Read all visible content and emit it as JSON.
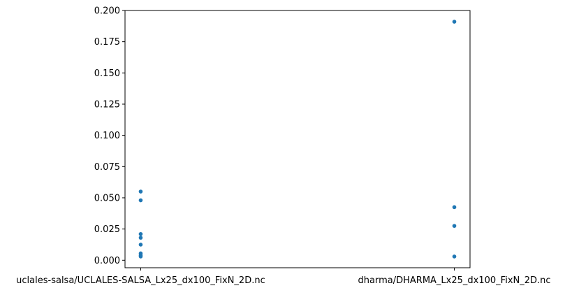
{
  "chart_data": {
    "type": "scatter",
    "title": "",
    "xlabel": "",
    "ylabel": "",
    "categories": [
      "uclales-salsa/UCLALES-SALSA_Lx25_dx100_FixN_2D.nc",
      "dharma/DHARMA_Lx25_dx100_FixN_2D.nc"
    ],
    "ylim": [
      -0.006,
      0.2
    ],
    "yticks": [
      0.0,
      0.025,
      0.05,
      0.075,
      0.1,
      0.125,
      0.15,
      0.175,
      0.2
    ],
    "ytick_labels": [
      "0.000",
      "0.025",
      "0.050",
      "0.075",
      "0.100",
      "0.125",
      "0.150",
      "0.175",
      "0.200"
    ],
    "points": [
      {
        "category": 0,
        "y": 0.055
      },
      {
        "category": 0,
        "y": 0.048
      },
      {
        "category": 0,
        "y": 0.021
      },
      {
        "category": 0,
        "y": 0.018
      },
      {
        "category": 0,
        "y": 0.0125
      },
      {
        "category": 0,
        "y": 0.0055
      },
      {
        "category": 0,
        "y": 0.004
      },
      {
        "category": 0,
        "y": 0.003
      },
      {
        "category": 1,
        "y": 0.191
      },
      {
        "category": 1,
        "y": 0.0425
      },
      {
        "category": 1,
        "y": 0.0275
      },
      {
        "category": 1,
        "y": 0.003
      }
    ],
    "marker_color": "#1f77b4",
    "grid": false
  }
}
